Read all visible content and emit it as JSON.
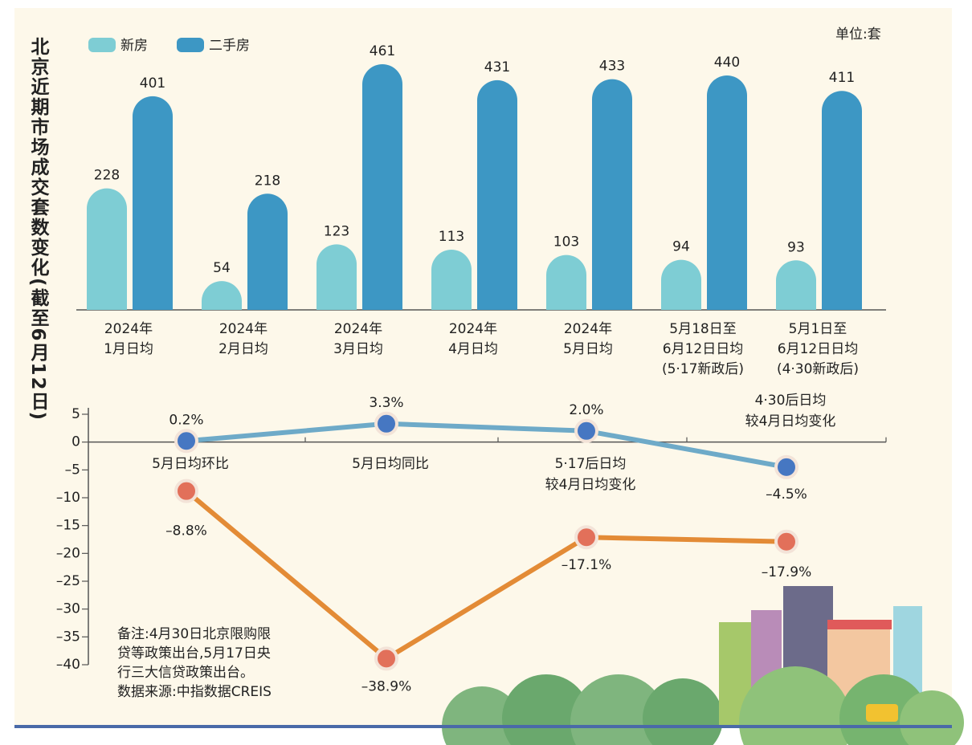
{
  "chart_data": [
    {
      "type": "bar",
      "title": "北京近期市场成交套数变化(截至6月12日)",
      "unit": "单位:套",
      "categories": [
        "2024年\n1月日均",
        "2024年\n2月日均",
        "2024年\n3月日均",
        "2024年\n4月日均",
        "2024年\n5月日均",
        "5月18日至\n6月12日日均\n(5·17新政后)",
        "5月1日至\n6月12日日均\n(4·30新政后)"
      ],
      "series": [
        {
          "name": "新房",
          "color": "#7ecdd4",
          "values": [
            228,
            54,
            123,
            113,
            103,
            94,
            93
          ]
        },
        {
          "name": "二手房",
          "color": "#3d97c4",
          "values": [
            401,
            218,
            461,
            431,
            433,
            440,
            411
          ]
        }
      ],
      "legend": "top-left"
    },
    {
      "type": "line",
      "categories": [
        "5月日均环比",
        "5月日均同比",
        "5·17后日均\n较4月日均变化",
        "4·30后日均\n较4月日均变化"
      ],
      "series": [
        {
          "color": "#6eaac8",
          "marker_color": "#4677c2",
          "values": [
            0.2,
            3.3,
            2.0,
            -4.5
          ],
          "value_labels": [
            "0.2%",
            "3.3%",
            "2.0%",
            "–4.5%"
          ]
        },
        {
          "color": "#e38b36",
          "marker_color": "#e2705a",
          "values": [
            -8.8,
            -38.9,
            -17.1,
            -17.9
          ],
          "value_labels": [
            "–8.8%",
            "–38.9%",
            "–17.1%",
            "–17.9%"
          ]
        }
      ],
      "ylim": [
        -40,
        5
      ],
      "yticks": [
        5,
        0,
        {
          "value": -5,
          "label": "–5"
        },
        {
          "value": -10,
          "label": "–10"
        },
        {
          "value": -15,
          "label": "–15"
        },
        {
          "value": -20,
          "label": "–20"
        },
        {
          "value": -25,
          "label": "–25"
        },
        {
          "value": -30,
          "label": "–30"
        },
        {
          "value": -35,
          "label": "–35"
        },
        {
          "value": -40,
          "label": "–40"
        }
      ],
      "annotations": [
        "备注:4月30日北京限购限",
        "贷等政策出台,5月17日央",
        "行三大信贷政策出台。",
        "数据来源:中指数据CREIS"
      ]
    }
  ]
}
